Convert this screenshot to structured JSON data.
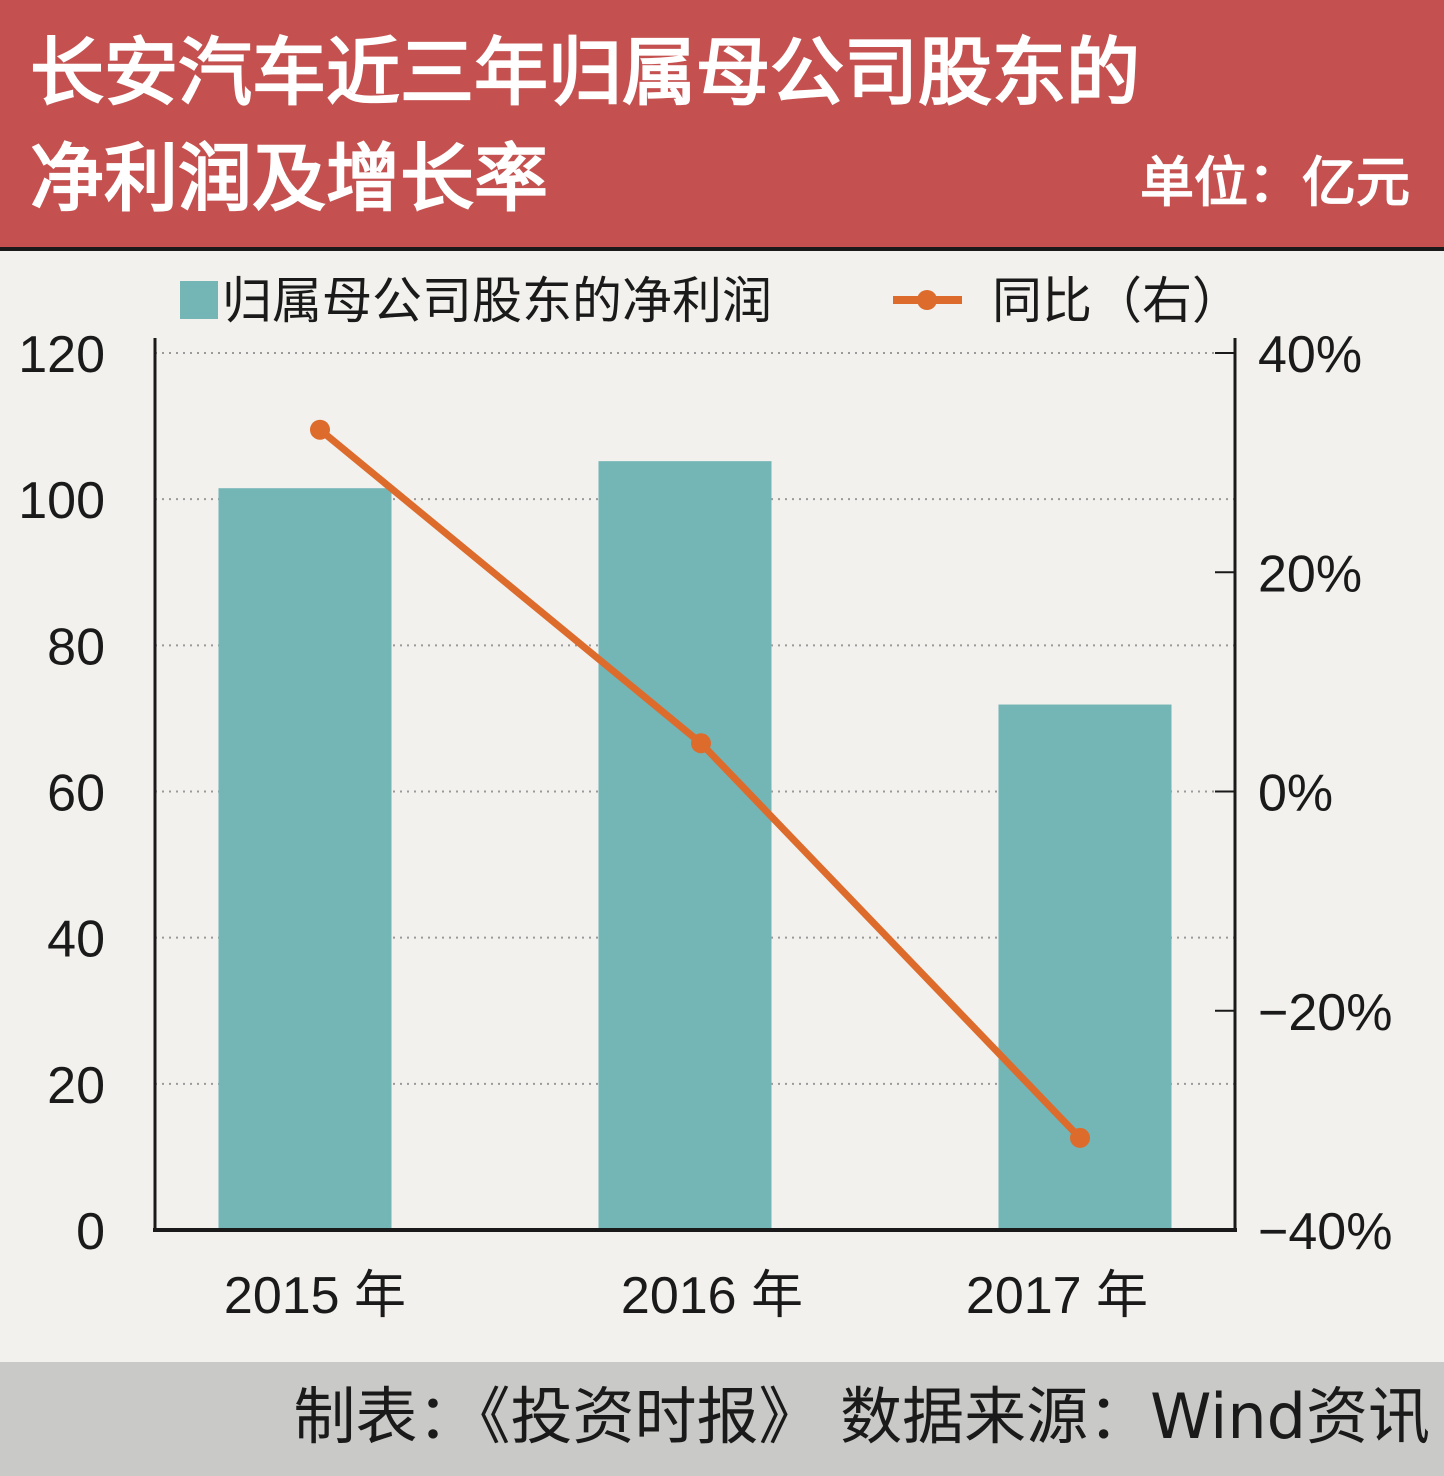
{
  "header": {
    "title_line1": "长安汽车近三年归属母公司股东的",
    "title_line2": "净利润及增长率",
    "unit": "单位：亿元"
  },
  "legend": {
    "bar_label": "归属母公司股东的净利润",
    "line_label": "同比（右）"
  },
  "colors": {
    "header_bg": "#c4514f",
    "bar": "#74b5b6",
    "line": "#dd6b2c",
    "background": "#f2f1ed",
    "footer_bg": "#c9c9c7"
  },
  "chart_data": {
    "type": "bar",
    "title": "长安汽车近三年归属母公司股东的净利润及增长率",
    "categories": [
      "2015 年",
      "2016 年",
      "2017 年"
    ],
    "series": [
      {
        "name": "归属母公司股东的净利润",
        "type": "bar",
        "axis": "left",
        "values": [
          101.5,
          105.2,
          71.9
        ]
      },
      {
        "name": "同比（右）",
        "type": "line",
        "axis": "right",
        "values": [
          33,
          4.4,
          -31.6
        ]
      }
    ],
    "y_left": {
      "ylim": [
        0,
        120
      ],
      "ticks": [
        "0",
        "20",
        "40",
        "60",
        "80",
        "100",
        "120"
      ]
    },
    "y_right": {
      "ylim": [
        -40,
        40
      ],
      "ticks": [
        "−40%",
        "−20%",
        "0%",
        "20%",
        "40%"
      ]
    },
    "grid": true,
    "legend_position": "top"
  },
  "footer": {
    "text": "制表：《投资时报》   数据来源：Wind资讯"
  }
}
